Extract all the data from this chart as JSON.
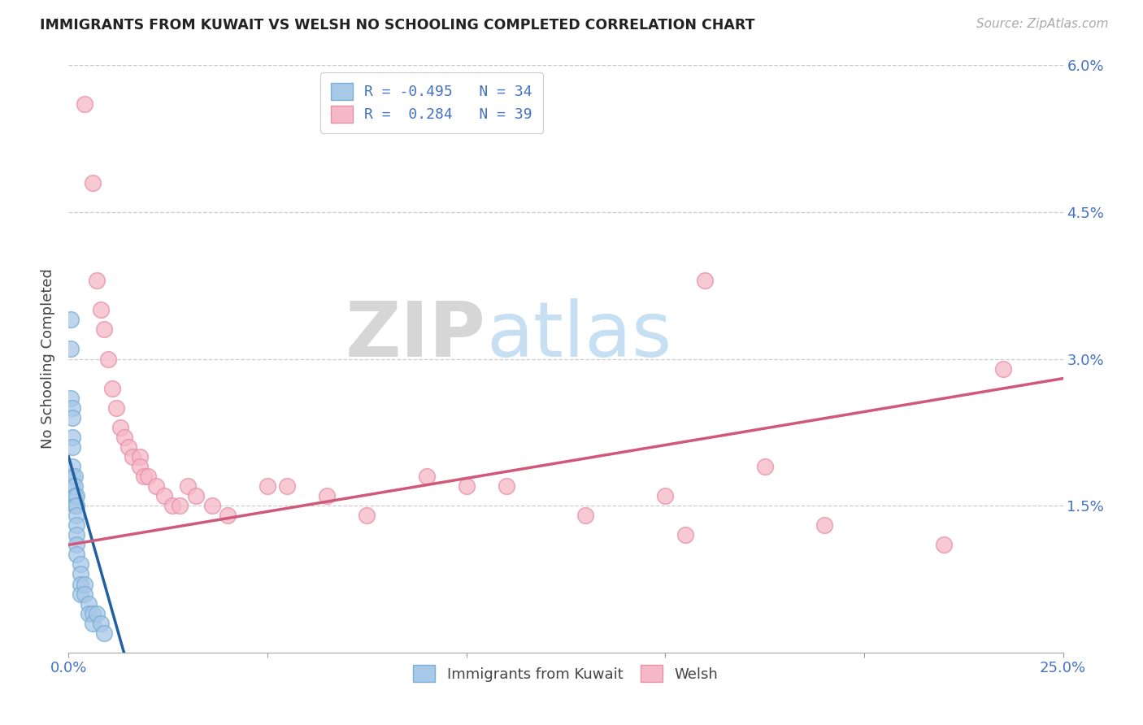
{
  "title": "IMMIGRANTS FROM KUWAIT VS WELSH NO SCHOOLING COMPLETED CORRELATION CHART",
  "source": "Source: ZipAtlas.com",
  "xlabel_label": "Immigrants from Kuwait",
  "ylabel_label": "No Schooling Completed",
  "xmin": 0.0,
  "xmax": 0.25,
  "ymin": 0.0,
  "ymax": 0.06,
  "yticks": [
    0.0,
    0.015,
    0.03,
    0.045,
    0.06
  ],
  "ytick_labels_right": [
    "",
    "1.5%",
    "3.0%",
    "4.5%",
    "6.0%"
  ],
  "xticks": [
    0.0,
    0.05,
    0.1,
    0.15,
    0.2,
    0.25
  ],
  "xtick_labels": [
    "0.0%",
    "",
    "",
    "",
    "",
    "25.0%"
  ],
  "legend_blue_r": "-0.495",
  "legend_blue_n": "34",
  "legend_pink_r": "0.284",
  "legend_pink_n": "39",
  "blue_color": "#a8c8e8",
  "blue_edge_color": "#7aafd4",
  "pink_color": "#f5b8c8",
  "pink_edge_color": "#e890a8",
  "blue_line_color": "#2060a0",
  "pink_line_color": "#d05878",
  "watermark_zip": "ZIP",
  "watermark_atlas": "atlas",
  "blue_points_x": [
    0.0005,
    0.0005,
    0.0005,
    0.001,
    0.001,
    0.001,
    0.001,
    0.001,
    0.001,
    0.001,
    0.0015,
    0.0015,
    0.0015,
    0.0015,
    0.002,
    0.002,
    0.002,
    0.002,
    0.002,
    0.002,
    0.002,
    0.003,
    0.003,
    0.003,
    0.003,
    0.004,
    0.004,
    0.005,
    0.005,
    0.006,
    0.006,
    0.007,
    0.008,
    0.009
  ],
  "blue_points_y": [
    0.034,
    0.031,
    0.026,
    0.025,
    0.024,
    0.022,
    0.021,
    0.019,
    0.018,
    0.017,
    0.018,
    0.017,
    0.016,
    0.015,
    0.016,
    0.015,
    0.014,
    0.013,
    0.012,
    0.011,
    0.01,
    0.009,
    0.008,
    0.007,
    0.006,
    0.007,
    0.006,
    0.005,
    0.004,
    0.004,
    0.003,
    0.004,
    0.003,
    0.002
  ],
  "pink_points_x": [
    0.004,
    0.006,
    0.007,
    0.008,
    0.009,
    0.01,
    0.011,
    0.012,
    0.013,
    0.014,
    0.015,
    0.016,
    0.018,
    0.018,
    0.019,
    0.02,
    0.022,
    0.024,
    0.026,
    0.028,
    0.03,
    0.032,
    0.036,
    0.04,
    0.05,
    0.055,
    0.065,
    0.075,
    0.09,
    0.1,
    0.11,
    0.13,
    0.15,
    0.155,
    0.16,
    0.175,
    0.19,
    0.22,
    0.235
  ],
  "pink_points_y": [
    0.056,
    0.048,
    0.038,
    0.035,
    0.033,
    0.03,
    0.027,
    0.025,
    0.023,
    0.022,
    0.021,
    0.02,
    0.02,
    0.019,
    0.018,
    0.018,
    0.017,
    0.016,
    0.015,
    0.015,
    0.017,
    0.016,
    0.015,
    0.014,
    0.017,
    0.017,
    0.016,
    0.014,
    0.018,
    0.017,
    0.017,
    0.014,
    0.016,
    0.012,
    0.038,
    0.019,
    0.013,
    0.011,
    0.029
  ],
  "blue_line_x": [
    0.0,
    0.016
  ],
  "blue_line_y": [
    0.02,
    -0.003
  ],
  "pink_line_x": [
    0.0,
    0.25
  ],
  "pink_line_y": [
    0.011,
    0.028
  ]
}
